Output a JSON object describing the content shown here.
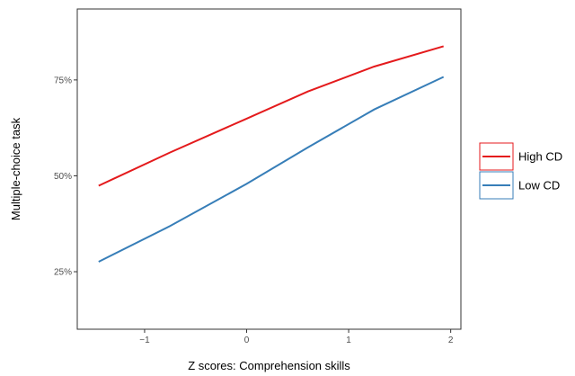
{
  "chart_data": {
    "type": "line",
    "title": "",
    "xlabel": "Z scores: Comprehension skills",
    "ylabel": "Multiple-choice task",
    "xlim": [
      -1.66,
      2.1
    ],
    "ylim": [
      0.1,
      0.935
    ],
    "xticks": [
      {
        "value": -1,
        "label": "−1"
      },
      {
        "value": 0,
        "label": "0"
      },
      {
        "value": 1,
        "label": "1"
      },
      {
        "value": 2,
        "label": "2"
      }
    ],
    "yticks": [
      {
        "value": 0.25,
        "label": "25%"
      },
      {
        "value": 0.5,
        "label": "50%"
      },
      {
        "value": 0.75,
        "label": "75%"
      }
    ],
    "grid": false,
    "legend_position": "right",
    "series": [
      {
        "name": "High CD",
        "color": "#e41a1c",
        "x": [
          -1.45,
          -0.75,
          0.0,
          0.6,
          1.25,
          1.93
        ],
        "y": [
          0.474,
          0.561,
          0.649,
          0.72,
          0.785,
          0.838
        ]
      },
      {
        "name": "Low CD",
        "color": "#377eb8",
        "x": [
          -1.45,
          -0.75,
          0.0,
          0.6,
          1.25,
          1.93
        ],
        "y": [
          0.276,
          0.369,
          0.479,
          0.574,
          0.673,
          0.758
        ]
      }
    ]
  }
}
